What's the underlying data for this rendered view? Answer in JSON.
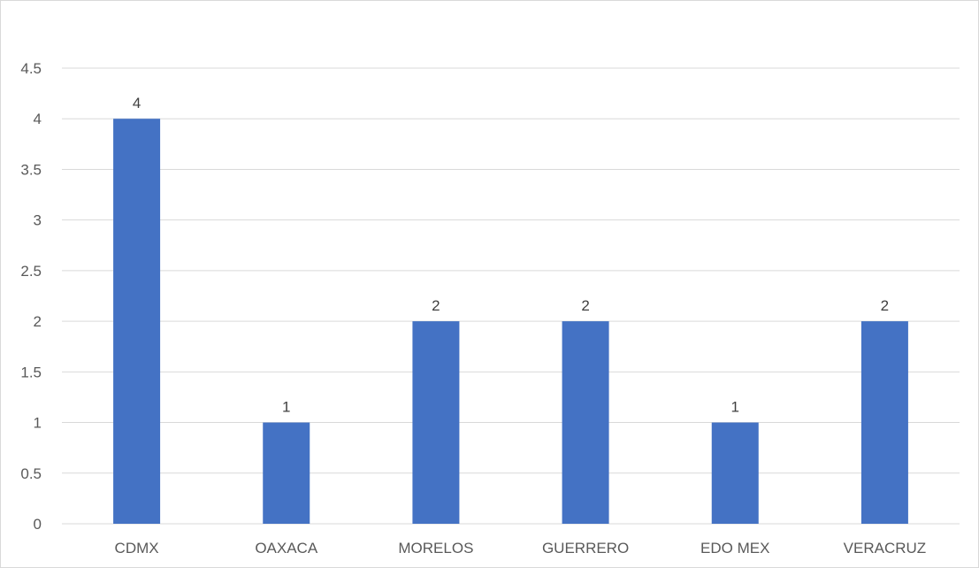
{
  "chart_data": {
    "type": "bar",
    "categories": [
      "CDMX",
      "OAXACA",
      "MORELOS",
      "GUERRERO",
      "EDO MEX",
      "VERACRUZ"
    ],
    "values": [
      4,
      1,
      2,
      2,
      1,
      2
    ],
    "ylim": [
      0,
      4.5
    ],
    "y_ticks": [
      "0",
      "0.5",
      "1",
      "1.5",
      "2",
      "2.5",
      "3",
      "3.5",
      "4",
      "4.5"
    ],
    "grid": true,
    "legend": "none",
    "data_labels": true,
    "bar_color": "#4472c4",
    "gridline_color": "#d9d9d9"
  }
}
